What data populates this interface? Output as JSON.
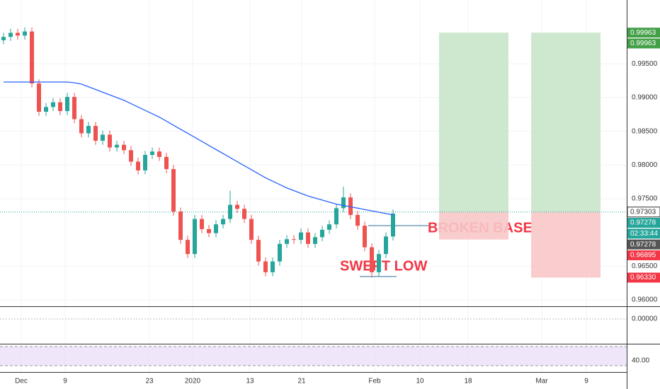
{
  "chart_data": {
    "type": "candlestick",
    "ylim": [
      0.95916,
      1.00447
    ],
    "yticks": [
      {
        "value": 0.96,
        "label": "0.96000"
      },
      {
        "value": 0.965,
        "label": "0.96500"
      },
      {
        "value": 0.975,
        "label": "0.97500"
      },
      {
        "value": 0.98,
        "label": "0.98000"
      },
      {
        "value": 0.985,
        "label": "0.98500"
      },
      {
        "value": 0.99,
        "label": "0.99000"
      },
      {
        "value": 0.995,
        "label": "0.99500"
      }
    ],
    "xticks": [
      "Dec",
      "9",
      "23",
      "2020",
      "13",
      "21",
      "Feb",
      "10",
      "18",
      "Mar",
      "9"
    ],
    "up_color": "#26a69a",
    "down_color": "#ef5350",
    "ohlc": [
      [
        0.9985,
        0.9996,
        0.9979,
        0.999
      ],
      [
        0.999,
        1.0002,
        0.9984,
        0.9996
      ],
      [
        0.9996,
        1.0002,
        0.9986,
        0.9992
      ],
      [
        0.9992,
        1.0004,
        0.9986,
        0.9998
      ],
      [
        0.9998,
        1.0004,
        0.9915,
        0.9921
      ],
      [
        0.9921,
        0.9927,
        0.9873,
        0.9879
      ],
      [
        0.9879,
        0.9892,
        0.9873,
        0.9886
      ],
      [
        0.9886,
        0.9899,
        0.988,
        0.9893
      ],
      [
        0.9893,
        0.9899,
        0.9874,
        0.988
      ],
      [
        0.988,
        0.9907,
        0.9874,
        0.9901
      ],
      [
        0.9901,
        0.9907,
        0.9862,
        0.9868
      ],
      [
        0.9868,
        0.9874,
        0.9841,
        0.9847
      ],
      [
        0.9847,
        0.9864,
        0.9841,
        0.9858
      ],
      [
        0.9858,
        0.9864,
        0.983,
        0.9836
      ],
      [
        0.9836,
        0.9851,
        0.983,
        0.9845
      ],
      [
        0.9845,
        0.9851,
        0.982,
        0.9826
      ],
      [
        0.9826,
        0.9836,
        0.982,
        0.983
      ],
      [
        0.983,
        0.9836,
        0.9816,
        0.9822
      ],
      [
        0.9822,
        0.9828,
        0.9799,
        0.9805
      ],
      [
        0.9805,
        0.9811,
        0.9786,
        0.9792
      ],
      [
        0.9792,
        0.9821,
        0.9786,
        0.9815
      ],
      [
        0.9815,
        0.9826,
        0.9809,
        0.982
      ],
      [
        0.982,
        0.9826,
        0.9806,
        0.9812
      ],
      [
        0.9812,
        0.9818,
        0.9788,
        0.9794
      ],
      [
        0.9794,
        0.98,
        0.9725,
        0.9731
      ],
      [
        0.9731,
        0.9737,
        0.9683,
        0.9689
      ],
      [
        0.9689,
        0.9695,
        0.9662,
        0.9668
      ],
      [
        0.9668,
        0.9726,
        0.9662,
        0.972
      ],
      [
        0.972,
        0.9726,
        0.9699,
        0.9705
      ],
      [
        0.9705,
        0.9711,
        0.9693,
        0.9699
      ],
      [
        0.9699,
        0.9718,
        0.9693,
        0.9712
      ],
      [
        0.9712,
        0.9726,
        0.9706,
        0.972
      ],
      [
        0.972,
        0.9762,
        0.9714,
        0.9741
      ],
      [
        0.9741,
        0.9747,
        0.9729,
        0.9735
      ],
      [
        0.9735,
        0.9741,
        0.9714,
        0.972
      ],
      [
        0.972,
        0.9726,
        0.9683,
        0.9689
      ],
      [
        0.9689,
        0.9695,
        0.9651,
        0.9657
      ],
      [
        0.9657,
        0.9663,
        0.9635,
        0.9641
      ],
      [
        0.9641,
        0.9663,
        0.9635,
        0.9657
      ],
      [
        0.9657,
        0.9689,
        0.9651,
        0.9683
      ],
      [
        0.9683,
        0.9696,
        0.9677,
        0.969
      ],
      [
        0.969,
        0.9696,
        0.9683,
        0.9689
      ],
      [
        0.9689,
        0.9706,
        0.9683,
        0.97
      ],
      [
        0.97,
        0.9706,
        0.9677,
        0.9683
      ],
      [
        0.9683,
        0.9699,
        0.9677,
        0.9693
      ],
      [
        0.9693,
        0.971,
        0.9687,
        0.9704
      ],
      [
        0.9704,
        0.9718,
        0.9698,
        0.9712
      ],
      [
        0.9712,
        0.9742,
        0.9706,
        0.9736
      ],
      [
        0.9736,
        0.9768,
        0.973,
        0.9752
      ],
      [
        0.9752,
        0.9758,
        0.972,
        0.9726
      ],
      [
        0.9726,
        0.9732,
        0.9704,
        0.971
      ],
      [
        0.971,
        0.9716,
        0.9672,
        0.9678
      ],
      [
        0.9678,
        0.9684,
        0.9633,
        0.9641
      ],
      [
        0.9641,
        0.9674,
        0.9635,
        0.9668
      ],
      [
        0.9668,
        0.97,
        0.9662,
        0.9694
      ],
      [
        0.9694,
        0.9734,
        0.9688,
        0.9728
      ]
    ],
    "ma": {
      "color": "#2962ff",
      "values": [
        0.9923,
        0.9923,
        0.9923,
        0.9923,
        0.9923,
        0.9923,
        0.9923,
        0.9923,
        0.9923,
        0.9923,
        0.9922,
        0.992,
        0.9916,
        0.9912,
        0.9908,
        0.9904,
        0.99,
        0.9896,
        0.9891,
        0.9886,
        0.9881,
        0.9876,
        0.9871,
        0.9865,
        0.9859,
        0.9853,
        0.9847,
        0.9841,
        0.9835,
        0.9829,
        0.9823,
        0.9817,
        0.9811,
        0.9805,
        0.9799,
        0.9793,
        0.9787,
        0.9781,
        0.9776,
        0.9771,
        0.9766,
        0.9762,
        0.9758,
        0.9754,
        0.9751,
        0.9748,
        0.9745,
        0.9742,
        0.974,
        0.9738,
        0.9736,
        0.9734,
        0.9732,
        0.973,
        0.9728,
        0.9726
      ]
    },
    "positions": [
      {
        "target": 0.99963,
        "entry": 0.97303,
        "stop": 0.96895
      },
      {
        "target": 0.99963,
        "entry": 0.97303,
        "stop": 0.9633
      }
    ],
    "price_labels": [
      {
        "value": 0.99963,
        "label": "0.99963",
        "color": "#43a047"
      },
      {
        "value": 0.99963,
        "label": "0.99963",
        "color": "#43a047"
      },
      {
        "value": 0.97303,
        "label": "0.97303",
        "color": "#ffffff"
      },
      {
        "value": 0.97278,
        "label": "0.97278",
        "color": "#26a69a"
      },
      {
        "label": "02:33:44",
        "color": "#26a69a"
      },
      {
        "value": 0.97278,
        "label": "0.97278",
        "color": "#555555"
      },
      {
        "value": 0.96895,
        "label": "0.96895",
        "color": "#f23645"
      },
      {
        "value": 0.9633,
        "label": "0.96330",
        "color": "#f23645"
      }
    ],
    "annotations": [
      "BROKEN BASE",
      "SWEPT LOW"
    ],
    "macd_label": "0.00000",
    "rsi_label": "40.00"
  }
}
